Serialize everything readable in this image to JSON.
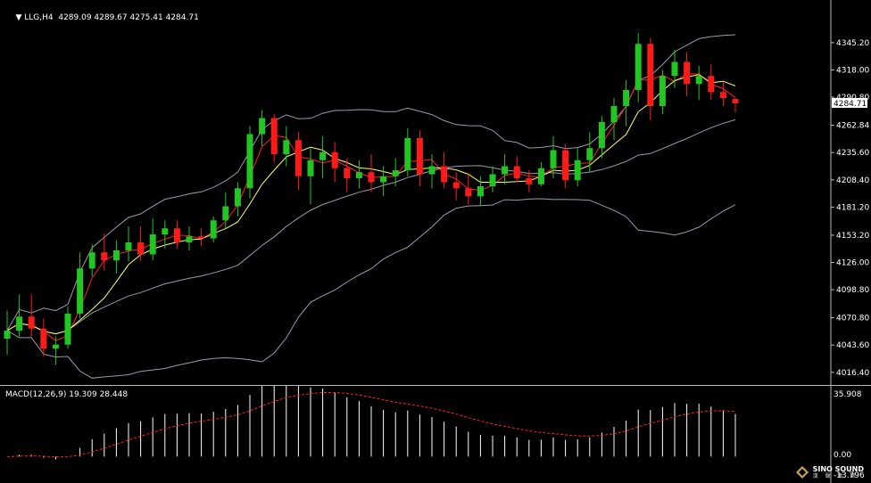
{
  "header": {
    "symbol_tf": "LLG,H4",
    "ohlc": "4289.09 4289.67 4275.41 4284.71",
    "macd_label": "MACD(12,26,9) 19.309 28.448"
  },
  "price_axis": {
    "ticks": [
      "4345.20",
      "4318.00",
      "4290.80",
      "4262.84",
      "4235.60",
      "4208.40",
      "4181.20",
      "4153.20",
      "4126.00",
      "4098.80",
      "4070.80",
      "4043.60",
      "4016.40"
    ],
    "current_price": "4284.71"
  },
  "macd_axis": {
    "ticks": [
      "35.908",
      "0.00",
      "-13.796"
    ]
  },
  "colors": {
    "bull": "#22c622",
    "bear": "#ff1a1a",
    "ma_fast": "#ff2020",
    "ma_slow": "#ffff66",
    "bands": "#9a9ab0",
    "macd_hist": "#ffffff",
    "macd_signal": "#ff2020"
  },
  "logo": {
    "name": "SINO SOUND",
    "sub": "漢 聲 集 團"
  },
  "chart_data": {
    "type": "candlestick",
    "title": "LLG,H4",
    "ylim": [
      4010,
      4370
    ],
    "candles": [
      [
        4050,
        4078,
        4034,
        4058
      ],
      [
        4058,
        4094,
        4052,
        4072
      ],
      [
        4072,
        4094,
        4052,
        4060
      ],
      [
        4060,
        4070,
        4032,
        4040
      ],
      [
        4040,
        4052,
        4024,
        4044
      ],
      [
        4044,
        4082,
        4040,
        4075
      ],
      [
        4075,
        4136,
        4070,
        4120
      ],
      [
        4120,
        4144,
        4112,
        4136
      ],
      [
        4136,
        4155,
        4118,
        4128
      ],
      [
        4128,
        4148,
        4115,
        4138
      ],
      [
        4138,
        4162,
        4127,
        4146
      ],
      [
        4146,
        4162,
        4128,
        4134
      ],
      [
        4134,
        4170,
        4128,
        4154
      ],
      [
        4154,
        4168,
        4140,
        4160
      ],
      [
        4160,
        4168,
        4140,
        4146
      ],
      [
        4146,
        4162,
        4138,
        4152
      ],
      [
        4152,
        4160,
        4142,
        4150
      ],
      [
        4150,
        4172,
        4146,
        4168
      ],
      [
        4168,
        4196,
        4160,
        4182
      ],
      [
        4182,
        4206,
        4172,
        4200
      ],
      [
        4200,
        4262,
        4190,
        4254
      ],
      [
        4254,
        4278,
        4242,
        4270
      ],
      [
        4270,
        4274,
        4226,
        4234
      ],
      [
        4234,
        4262,
        4222,
        4248
      ],
      [
        4248,
        4256,
        4198,
        4212
      ],
      [
        4212,
        4240,
        4184,
        4228
      ],
      [
        4228,
        4252,
        4210,
        4236
      ],
      [
        4236,
        4246,
        4206,
        4220
      ],
      [
        4220,
        4230,
        4196,
        4210
      ],
      [
        4210,
        4228,
        4200,
        4216
      ],
      [
        4216,
        4234,
        4196,
        4206
      ],
      [
        4206,
        4222,
        4192,
        4212
      ],
      [
        4212,
        4230,
        4202,
        4218
      ],
      [
        4218,
        4260,
        4212,
        4250
      ],
      [
        4250,
        4258,
        4202,
        4214
      ],
      [
        4214,
        4234,
        4200,
        4222
      ],
      [
        4222,
        4236,
        4200,
        4206
      ],
      [
        4206,
        4216,
        4188,
        4200
      ],
      [
        4200,
        4214,
        4184,
        4192
      ],
      [
        4192,
        4212,
        4182,
        4202
      ],
      [
        4202,
        4222,
        4196,
        4214
      ],
      [
        4214,
        4234,
        4204,
        4222
      ],
      [
        4222,
        4232,
        4206,
        4210
      ],
      [
        4210,
        4218,
        4196,
        4204
      ],
      [
        4204,
        4226,
        4202,
        4220
      ],
      [
        4220,
        4252,
        4210,
        4238
      ],
      [
        4238,
        4244,
        4200,
        4208
      ],
      [
        4208,
        4240,
        4202,
        4228
      ],
      [
        4228,
        4256,
        4216,
        4240
      ],
      [
        4240,
        4272,
        4230,
        4266
      ],
      [
        4266,
        4290,
        4248,
        4282
      ],
      [
        4282,
        4308,
        4262,
        4298
      ],
      [
        4298,
        4355,
        4286,
        4344
      ],
      [
        4344,
        4350,
        4268,
        4282
      ],
      [
        4282,
        4318,
        4274,
        4312
      ],
      [
        4312,
        4338,
        4300,
        4326
      ],
      [
        4326,
        4336,
        4292,
        4304
      ],
      [
        4304,
        4322,
        4288,
        4312
      ],
      [
        4312,
        4324,
        4288,
        4296
      ],
      [
        4296,
        4306,
        4282,
        4290
      ],
      [
        4289.09,
        4289.67,
        4275.41,
        4284.71
      ]
    ]
  }
}
